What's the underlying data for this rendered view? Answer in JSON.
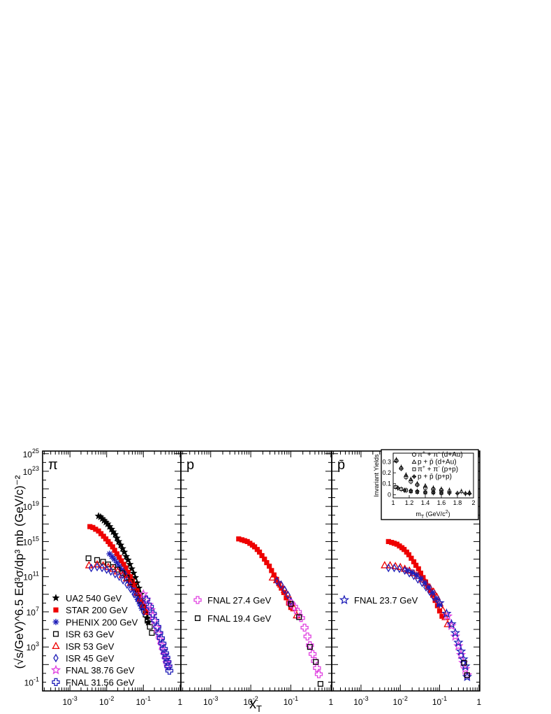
{
  "chart_data": {
    "type": "scatter",
    "y_label": "(√s/GeV)^6.5 Ed³σ/dp³ mb (GeV/c)⁻²",
    "x_label": "x_T",
    "x_scale": "log",
    "y_scale": "log",
    "xlim": [
      0.00018,
      1.05
    ],
    "ylim_exp": [
      -2,
      25.3
    ],
    "x_ticks": [
      {
        "v": 0.001,
        "base": "10",
        "exp": "-3"
      },
      {
        "v": 0.01,
        "base": "10",
        "exp": "-2"
      },
      {
        "v": 0.1,
        "base": "10",
        "exp": "-1"
      },
      {
        "v": 1,
        "base": "1",
        "exp": ""
      }
    ],
    "y_ticks": [
      {
        "e": -1,
        "base": "10",
        "exp": "-1"
      },
      {
        "e": 3,
        "base": "10",
        "exp": "3"
      },
      {
        "e": 7,
        "base": "10",
        "exp": "7"
      },
      {
        "e": 11,
        "base": "10",
        "exp": "11"
      },
      {
        "e": 15,
        "base": "10",
        "exp": "15"
      },
      {
        "e": 19,
        "base": "10",
        "exp": "19"
      },
      {
        "e": 23,
        "base": "10",
        "exp": "23"
      },
      {
        "e": 25,
        "base": "10",
        "exp": "25"
      }
    ],
    "panels": [
      {
        "title": "π",
        "legend": [
          {
            "name": "UA2 540 GeV",
            "marker": "star-filled",
            "color": "#000000"
          },
          {
            "name": "STAR 200 GeV",
            "marker": "square-filled",
            "color": "#ee0000"
          },
          {
            "name": "PHENIX 200 GeV",
            "marker": "asterisk",
            "color": "#1f1fb8"
          },
          {
            "name": "ISR 63 GeV",
            "marker": "square-open",
            "color": "#000000"
          },
          {
            "name": "ISR 53 GeV",
            "marker": "triangle-open",
            "color": "#ee0000"
          },
          {
            "name": "ISR 45 GeV",
            "marker": "diamond-open",
            "color": "#1f1fb8"
          },
          {
            "name": "FNAL 38.76 GeV",
            "marker": "star-open",
            "color": "#e040e0"
          },
          {
            "name": "FNAL 31.56 GeV",
            "marker": "cross-open",
            "color": "#1f1fb8"
          }
        ],
        "series": [
          {
            "name": "UA2 540 GeV",
            "x": [
              0.006,
              0.0068,
              0.0076,
              0.0085,
              0.0095,
              0.0106,
              0.012,
              0.0135,
              0.015,
              0.017,
              0.019,
              0.021,
              0.024,
              0.027,
              0.03,
              0.034,
              0.038,
              0.043,
              0.048,
              0.054,
              0.06,
              0.067,
              0.075,
              0.085,
              0.095,
              0.105,
              0.115,
              0.125,
              0.135
            ],
            "y": [
              17.9,
              17.8,
              17.6,
              17.4,
              17.2,
              17.0,
              16.7,
              16.4,
              16.1,
              15.8,
              15.4,
              15.0,
              14.6,
              14.2,
              13.8,
              13.3,
              12.9,
              12.4,
              11.9,
              11.4,
              10.9,
              10.3,
              9.7,
              9.0,
              8.3,
              7.6,
              6.9,
              6.3,
              5.8
            ]
          },
          {
            "name": "STAR 200 GeV",
            "x": [
              0.0035,
              0.0042,
              0.005,
              0.006,
              0.007,
              0.0082,
              0.0095,
              0.011,
              0.0125,
              0.0145,
              0.0165,
              0.019,
              0.022,
              0.025,
              0.029,
              0.033,
              0.038,
              0.044,
              0.05,
              0.058,
              0.067,
              0.077,
              0.088,
              0.1,
              0.115
            ],
            "y": [
              16.7,
              16.6,
              16.4,
              16.2,
              15.9,
              15.6,
              15.3,
              15.0,
              14.7,
              14.4,
              14.0,
              13.6,
              13.2,
              12.8,
              12.4,
              12.0,
              11.5,
              11.0,
              10.5,
              10.0,
              9.4,
              8.8,
              8.2,
              7.6,
              7.0
            ]
          },
          {
            "name": "PHENIX 200 GeV",
            "x": [
              0.012,
              0.014,
              0.016,
              0.019,
              0.022,
              0.026,
              0.03,
              0.035,
              0.04,
              0.046,
              0.053,
              0.06,
              0.07,
              0.08,
              0.09
            ],
            "y": [
              13.6,
              13.3,
              13.0,
              12.6,
              12.2,
              11.8,
              11.4,
              11.0,
              10.5,
              10.0,
              9.5,
              9.0,
              8.4,
              7.9,
              7.4
            ]
          },
          {
            "name": "ISR 63 GeV",
            "x": [
              0.0032,
              0.0055,
              0.008,
              0.011,
              0.015,
              0.02,
              0.027,
              0.035,
              0.045,
              0.057,
              0.07,
              0.085,
              0.1,
              0.115,
              0.13,
              0.15,
              0.17
            ],
            "y": [
              13.1,
              12.9,
              12.7,
              12.4,
              12.1,
              11.8,
              11.4,
              10.9,
              10.4,
              9.8,
              9.1,
              8.3,
              7.5,
              6.7,
              6.0,
              5.3,
              4.6
            ]
          },
          {
            "name": "ISR 53 GeV",
            "x": [
              0.0033,
              0.0055,
              0.008,
              0.011,
              0.015,
              0.02,
              0.027,
              0.035,
              0.045,
              0.057,
              0.07,
              0.085,
              0.1,
              0.12
            ],
            "y": [
              12.3,
              12.4,
              12.3,
              12.1,
              11.9,
              11.6,
              11.2,
              10.8,
              10.3,
              9.8,
              9.2,
              8.5,
              7.8,
              7.0
            ]
          },
          {
            "name": "ISR 45 GeV",
            "x": [
              0.0038,
              0.0055,
              0.0075,
              0.01,
              0.013,
              0.017,
              0.022,
              0.028,
              0.036,
              0.045,
              0.056,
              0.07,
              0.085,
              0.1
            ],
            "y": [
              12.0,
              12.1,
              12.0,
              11.8,
              11.6,
              11.3,
              11.0,
              10.6,
              10.1,
              9.6,
              9.0,
              8.4,
              7.7,
              7.0
            ]
          },
          {
            "name": "FNAL 38.76 GeV",
            "x": [
              0.1,
              0.12,
              0.14,
              0.16,
              0.18,
              0.2,
              0.23,
              0.26,
              0.29,
              0.32,
              0.35,
              0.38,
              0.41,
              0.44,
              0.47
            ],
            "y": [
              9.0,
              8.4,
              7.8,
              7.2,
              6.6,
              6.0,
              5.2,
              4.5,
              3.8,
              3.2,
              2.6,
              2.1,
              1.6,
              1.2,
              0.8
            ]
          },
          {
            "name": "FNAL 31.56 GeV",
            "x": [
              0.12,
              0.15,
              0.18,
              0.21,
              0.24,
              0.27,
              0.3,
              0.33,
              0.36,
              0.39,
              0.42,
              0.45,
              0.48,
              0.51
            ],
            "y": [
              8.4,
              7.6,
              6.8,
              6.0,
              5.3,
              4.6,
              4.0,
              3.4,
              2.8,
              2.3,
              1.8,
              1.3,
              0.8,
              0.3
            ]
          }
        ]
      },
      {
        "title": "p",
        "legend": [
          {
            "name": "FNAL 27.4 GeV",
            "marker": "cross-open",
            "color": "#e040e0"
          },
          {
            "name": "FNAL 19.4 GeV",
            "marker": "square-open",
            "color": "#000000"
          }
        ],
        "series": [
          {
            "name": "STAR 200 GeV",
            "x": [
              0.005,
              0.006,
              0.007,
              0.0082,
              0.0095,
              0.011,
              0.0125,
              0.0145,
              0.0165,
              0.019,
              0.022,
              0.025,
              0.029,
              0.033,
              0.038,
              0.044,
              0.05,
              0.058,
              0.067,
              0.077,
              0.088,
              0.1
            ],
            "y": [
              15.3,
              15.2,
              15.1,
              15.0,
              14.8,
              14.6,
              14.4,
              14.1,
              13.8,
              13.4,
              13.0,
              12.6,
              12.2,
              11.7,
              11.2,
              10.7,
              10.2,
              9.7,
              9.2,
              8.6,
              8.0,
              7.5
            ]
          },
          {
            "name": "ISR 53 GeV",
            "x": [
              0.035,
              0.045,
              0.057,
              0.07,
              0.085,
              0.1,
              0.12,
              0.14
            ],
            "y": [
              10.9,
              10.6,
              10.1,
              9.5,
              8.9,
              8.2,
              7.4,
              6.6
            ]
          },
          {
            "name": "ISR 45 GeV",
            "x": [
              0.045,
              0.057,
              0.07,
              0.085,
              0.1
            ],
            "y": [
              10.5,
              10.1,
              9.5,
              8.9,
              8.2
            ]
          },
          {
            "name": "FNAL 27.4 GeV",
            "x": [
              0.1,
              0.12,
              0.15,
              0.18,
              0.22,
              0.26,
              0.3,
              0.35,
              0.4,
              0.45,
              0.5
            ],
            "y": [
              8.0,
              7.6,
              7.0,
              6.3,
              5.2,
              4.2,
              3.2,
              2.2,
              1.4,
              0.6,
              -0.1
            ]
          },
          {
            "name": "FNAL 19.4 GeV",
            "x": [
              0.1,
              0.16,
              0.3,
              0.42,
              0.55
            ],
            "y": [
              7.9,
              6.4,
              3.0,
              1.3,
              -1.2
            ]
          }
        ]
      },
      {
        "title": "p̄",
        "legend": [
          {
            "name": "FNAL 23.7 GeV",
            "marker": "star-open",
            "color": "#1f1fb8"
          }
        ],
        "series": [
          {
            "name": "STAR 200 GeV",
            "x": [
              0.005,
              0.006,
              0.007,
              0.0082,
              0.0095,
              0.011,
              0.0125,
              0.0145,
              0.0165,
              0.019,
              0.022,
              0.025,
              0.029,
              0.033,
              0.038,
              0.044,
              0.05,
              0.058,
              0.067,
              0.077,
              0.088,
              0.1,
              0.115
            ],
            "y": [
              15.0,
              14.9,
              14.8,
              14.7,
              14.5,
              14.3,
              14.1,
              13.8,
              13.5,
              13.1,
              12.7,
              12.3,
              11.9,
              11.4,
              10.9,
              10.4,
              9.9,
              9.4,
              8.9,
              8.3,
              7.7,
              7.1,
              6.5
            ]
          },
          {
            "name": "ISR 53 GeV",
            "x": [
              0.004,
              0.0055,
              0.0075,
              0.01,
              0.013,
              0.017,
              0.022,
              0.028,
              0.036,
              0.045,
              0.056,
              0.07,
              0.085,
              0.1,
              0.12,
              0.14,
              0.16
            ],
            "y": [
              12.3,
              12.3,
              12.2,
              12.1,
              11.9,
              11.7,
              11.4,
              11.1,
              10.7,
              10.3,
              9.8,
              9.3,
              8.7,
              8.0,
              7.2,
              6.4,
              5.6
            ]
          },
          {
            "name": "ISR 45 GeV",
            "x": [
              0.005,
              0.007,
              0.0095,
              0.013,
              0.017,
              0.022,
              0.028,
              0.036,
              0.045,
              0.056,
              0.07
            ],
            "y": [
              12.0,
              12.0,
              11.9,
              11.7,
              11.4,
              11.1,
              10.7,
              10.3,
              9.8,
              9.3,
              8.7
            ]
          },
          {
            "name": "PHENIX 200 GeV",
            "x": [
              0.015,
              0.02,
              0.026,
              0.033,
              0.042,
              0.053,
              0.067,
              0.085,
              0.1
            ],
            "y": [
              11.7,
              11.5,
              11.2,
              10.8,
              10.3,
              9.8,
              9.2,
              8.5,
              7.8
            ]
          },
          {
            "name": "FNAL 38.76 GeV",
            "x": [
              0.16,
              0.2,
              0.25,
              0.3,
              0.35,
              0.4,
              0.45,
              0.5
            ],
            "y": [
              6.5,
              5.4,
              4.2,
              3.1,
              2.1,
              1.2,
              0.5,
              -0.2
            ]
          },
          {
            "name": "FNAL 23.7 GeV",
            "x": [
              0.1,
              0.15,
              0.2,
              0.25,
              0.3,
              0.35,
              0.4,
              0.45,
              0.5
            ],
            "y": [
              8.0,
              6.8,
              5.6,
              4.6,
              3.5,
              2.5,
              1.6,
              0.8,
              -0.4
            ]
          },
          {
            "name": "ISR 63 GeV",
            "x": [
              0.42,
              0.5
            ],
            "y": [
              1.2,
              -0.2
            ]
          }
        ]
      }
    ],
    "inset": {
      "y_label": "Invariant Yields",
      "x_label_base": "m",
      "x_label_sub": "T",
      "x_label_rest": " (GeV/c",
      "x_label_sup": "2",
      "x_label_end": ")",
      "xlim": [
        1.0,
        2.0
      ],
      "ylim": [
        -0.03,
        0.38
      ],
      "x_ticks": [
        {
          "v": 1.0,
          "l": "1"
        },
        {
          "v": 1.2,
          "l": "1.2"
        },
        {
          "v": 1.4,
          "l": "1.4"
        },
        {
          "v": 1.6,
          "l": "1.6"
        },
        {
          "v": 1.8,
          "l": "1.8"
        },
        {
          "v": 2.0,
          "l": "2"
        }
      ],
      "y_ticks": [
        {
          "v": 0,
          "l": "0"
        },
        {
          "v": 0.1,
          "l": "0.1"
        },
        {
          "v": 0.2,
          "l": "0.2"
        },
        {
          "v": 0.3,
          "l": "0.3"
        }
      ],
      "legend": [
        {
          "marker": "circle",
          "a": "π",
          "a_sup": "+",
          "op": " + ",
          "b": "π",
          "b_sup": "-",
          "sys": "(d+Au)"
        },
        {
          "marker": "triangle",
          "a": "p",
          "a_sup": "",
          "op": " + ",
          "b": "p̄",
          "b_sup": "",
          "sys": "(d+Au)"
        },
        {
          "marker": "square",
          "a": "π",
          "a_sup": "+",
          "op": " + ",
          "b": "π",
          "b_sup": "-",
          "sys": "(p+p)"
        },
        {
          "marker": "diamond-plus",
          "a": "p",
          "a_sup": "",
          "op": " + ",
          "b": "p̄",
          "b_sup": "",
          "sys": "(p+p)"
        }
      ],
      "series": [
        {
          "marker": "circle",
          "x": [
            1.04,
            1.1,
            1.16,
            1.22,
            1.3,
            1.4,
            1.5,
            1.6
          ],
          "y": [
            0.31,
            0.24,
            0.16,
            0.12,
            0.09,
            0.06,
            0.05,
            0.04
          ]
        },
        {
          "marker": "triangle",
          "x": [
            1.04,
            1.1,
            1.16,
            1.22,
            1.3,
            1.4,
            1.5,
            1.6,
            1.7,
            1.85,
            1.95
          ],
          "y": [
            0.32,
            0.25,
            0.18,
            0.14,
            0.1,
            0.08,
            0.06,
            0.05,
            0.04,
            0.03,
            0.02
          ]
        },
        {
          "marker": "square",
          "x": [
            1.03,
            1.1,
            1.16,
            1.22,
            1.3,
            1.4,
            1.5,
            1.6
          ],
          "y": [
            0.07,
            0.05,
            0.04,
            0.03,
            0.025,
            0.02,
            0.02,
            0.015
          ]
        },
        {
          "marker": "diamond-plus",
          "x": [
            1.06,
            1.14,
            1.22,
            1.3,
            1.4,
            1.5,
            1.6,
            1.7,
            1.8,
            1.9,
            1.95
          ],
          "y": [
            0.06,
            0.04,
            0.035,
            0.03,
            0.02,
            0.02,
            0.015,
            0.015,
            0.012,
            0.01,
            0.01
          ]
        }
      ]
    }
  }
}
